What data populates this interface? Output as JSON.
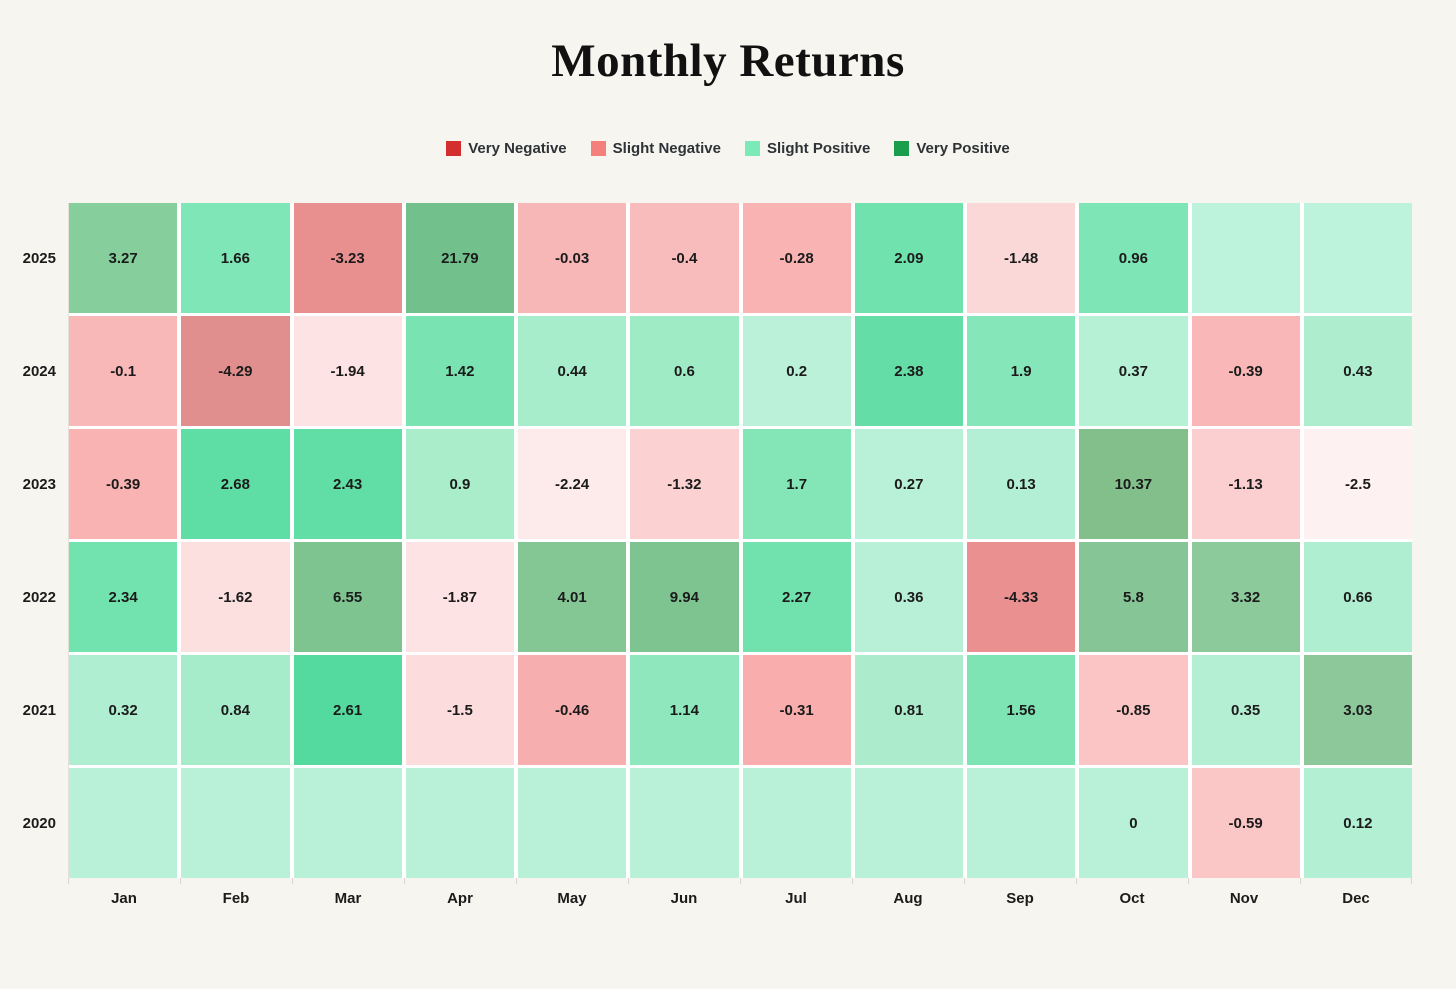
{
  "page": {
    "background": "#f7f5ef",
    "title": "Monthly Returns"
  },
  "chart_data": {
    "type": "heatmap",
    "title": "Monthly Returns",
    "x_categories": [
      "Jan",
      "Feb",
      "Mar",
      "Apr",
      "May",
      "Jun",
      "Jul",
      "Aug",
      "Sep",
      "Oct",
      "Nov",
      "Dec"
    ],
    "y_categories": [
      "2025",
      "2024",
      "2023",
      "2022",
      "2021",
      "2020"
    ],
    "legend_position": "top-center",
    "legend": [
      {
        "label": "Very Negative",
        "color": "#d32f2f"
      },
      {
        "label": "Slight Negative",
        "color": "#f4807b"
      },
      {
        "label": "Slight Positive",
        "color": "#7ce9b9"
      },
      {
        "label": "Very Positive",
        "color": "#1b9e4b"
      }
    ],
    "rows": [
      {
        "year": "2025",
        "cells": [
          {
            "label": "3.27",
            "value": 3.27,
            "color": "#86cf9c"
          },
          {
            "label": "1.66",
            "value": 1.66,
            "color": "#7fe6b8"
          },
          {
            "label": "-3.23",
            "value": -3.23,
            "color": "#e89090"
          },
          {
            "label": "21.79",
            "value": 21.79,
            "color": "#72c18c"
          },
          {
            "label": "-0.03",
            "value": -0.03,
            "color": "#f8b7b7"
          },
          {
            "label": "-0.4",
            "value": -0.4,
            "color": "#f9bcbc"
          },
          {
            "label": "-0.28",
            "value": -0.28,
            "color": "#f9b3b3"
          },
          {
            "label": "2.09",
            "value": 2.09,
            "color": "#6fe2ae"
          },
          {
            "label": "-1.48",
            "value": -1.48,
            "color": "#fbd8d8"
          },
          {
            "label": "0.96",
            "value": 0.96,
            "color": "#7ee5b6"
          },
          {
            "label": "",
            "value": null,
            "color": "#bdf2dc"
          },
          {
            "label": "",
            "value": null,
            "color": "#bdf2dc"
          }
        ]
      },
      {
        "year": "2024",
        "cells": [
          {
            "label": "-0.1",
            "value": -0.1,
            "color": "#f9b8b8"
          },
          {
            "label": "-4.29",
            "value": -4.29,
            "color": "#e18e8e"
          },
          {
            "label": "-1.94",
            "value": -1.94,
            "color": "#fde3e3"
          },
          {
            "label": "1.42",
            "value": 1.42,
            "color": "#79e3b1"
          },
          {
            "label": "0.44",
            "value": 0.44,
            "color": "#a7edcb"
          },
          {
            "label": "0.6",
            "value": 0.6,
            "color": "#9febc6"
          },
          {
            "label": "0.2",
            "value": 0.2,
            "color": "#baf1d8"
          },
          {
            "label": "2.38",
            "value": 2.38,
            "color": "#64dda6"
          },
          {
            "label": "1.9",
            "value": 1.9,
            "color": "#85e6b9"
          },
          {
            "label": "0.37",
            "value": 0.37,
            "color": "#b6f0d5"
          },
          {
            "label": "-0.39",
            "value": -0.39,
            "color": "#f9b7b7"
          },
          {
            "label": "0.43",
            "value": 0.43,
            "color": "#aeeecf"
          }
        ]
      },
      {
        "year": "2023",
        "cells": [
          {
            "label": "-0.39",
            "value": -0.39,
            "color": "#f9b3b3"
          },
          {
            "label": "2.68",
            "value": 2.68,
            "color": "#5edda4"
          },
          {
            "label": "2.43",
            "value": 2.43,
            "color": "#60dea5"
          },
          {
            "label": "0.9",
            "value": 0.9,
            "color": "#a9edcb"
          },
          {
            "label": "-2.24",
            "value": -2.24,
            "color": "#fdeaea"
          },
          {
            "label": "-1.32",
            "value": -1.32,
            "color": "#fbd1d1"
          },
          {
            "label": "1.7",
            "value": 1.7,
            "color": "#84e5b7"
          },
          {
            "label": "0.27",
            "value": 0.27,
            "color": "#b9f1d8"
          },
          {
            "label": "0.13",
            "value": 0.13,
            "color": "#b3efd4"
          },
          {
            "label": "10.37",
            "value": 10.37,
            "color": "#82bf8b"
          },
          {
            "label": "-1.13",
            "value": -1.13,
            "color": "#fbcfcf"
          },
          {
            "label": "-2.5",
            "value": -2.5,
            "color": "#fdf2f1"
          }
        ]
      },
      {
        "year": "2022",
        "cells": [
          {
            "label": "2.34",
            "value": 2.34,
            "color": "#72e2ae"
          },
          {
            "label": "-1.62",
            "value": -1.62,
            "color": "#fcdfdf"
          },
          {
            "label": "6.55",
            "value": 6.55,
            "color": "#7ec490"
          },
          {
            "label": "-1.87",
            "value": -1.87,
            "color": "#fde3e3"
          },
          {
            "label": "4.01",
            "value": 4.01,
            "color": "#84c795"
          },
          {
            "label": "9.94",
            "value": 9.94,
            "color": "#7ec490"
          },
          {
            "label": "2.27",
            "value": 2.27,
            "color": "#71e1ad"
          },
          {
            "label": "0.36",
            "value": 0.36,
            "color": "#b8f0d7"
          },
          {
            "label": "-4.33",
            "value": -4.33,
            "color": "#ea9090"
          },
          {
            "label": "5.8",
            "value": 5.8,
            "color": "#86c595"
          },
          {
            "label": "3.32",
            "value": 3.32,
            "color": "#8cc99b"
          },
          {
            "label": "0.66",
            "value": 0.66,
            "color": "#afeed1"
          }
        ]
      },
      {
        "year": "2021",
        "cells": [
          {
            "label": "0.32",
            "value": 0.32,
            "color": "#afeed0"
          },
          {
            "label": "0.84",
            "value": 0.84,
            "color": "#a6ecca"
          },
          {
            "label": "2.61",
            "value": 2.61,
            "color": "#54d99e"
          },
          {
            "label": "-1.5",
            "value": -1.5,
            "color": "#fcdcdc"
          },
          {
            "label": "-0.46",
            "value": -0.46,
            "color": "#f7aeae"
          },
          {
            "label": "1.14",
            "value": 1.14,
            "color": "#8ee7bd"
          },
          {
            "label": "-0.31",
            "value": -0.31,
            "color": "#f9adad"
          },
          {
            "label": "0.81",
            "value": 0.81,
            "color": "#aceccd"
          },
          {
            "label": "1.56",
            "value": 1.56,
            "color": "#7ee4b4"
          },
          {
            "label": "-0.85",
            "value": -0.85,
            "color": "#fbc5c5"
          },
          {
            "label": "0.35",
            "value": 0.35,
            "color": "#b4efd4"
          },
          {
            "label": "3.03",
            "value": 3.03,
            "color": "#8dc89b"
          }
        ]
      },
      {
        "year": "2020",
        "cells": [
          {
            "label": "",
            "value": null,
            "color": "#b8f0d8"
          },
          {
            "label": "",
            "value": null,
            "color": "#b8f0d8"
          },
          {
            "label": "",
            "value": null,
            "color": "#b8f0d8"
          },
          {
            "label": "",
            "value": null,
            "color": "#b8f0d8"
          },
          {
            "label": "",
            "value": null,
            "color": "#b8f0d8"
          },
          {
            "label": "",
            "value": null,
            "color": "#b8f0d8"
          },
          {
            "label": "",
            "value": null,
            "color": "#b8f0d8"
          },
          {
            "label": "",
            "value": null,
            "color": "#b8f0d8"
          },
          {
            "label": "",
            "value": null,
            "color": "#b8f0d8"
          },
          {
            "label": "0",
            "value": 0,
            "color": "#b8f0d8"
          },
          {
            "label": "-0.59",
            "value": -0.59,
            "color": "#fbc6c6"
          },
          {
            "label": "0.12",
            "value": 0.12,
            "color": "#b2efd3"
          }
        ]
      }
    ]
  }
}
